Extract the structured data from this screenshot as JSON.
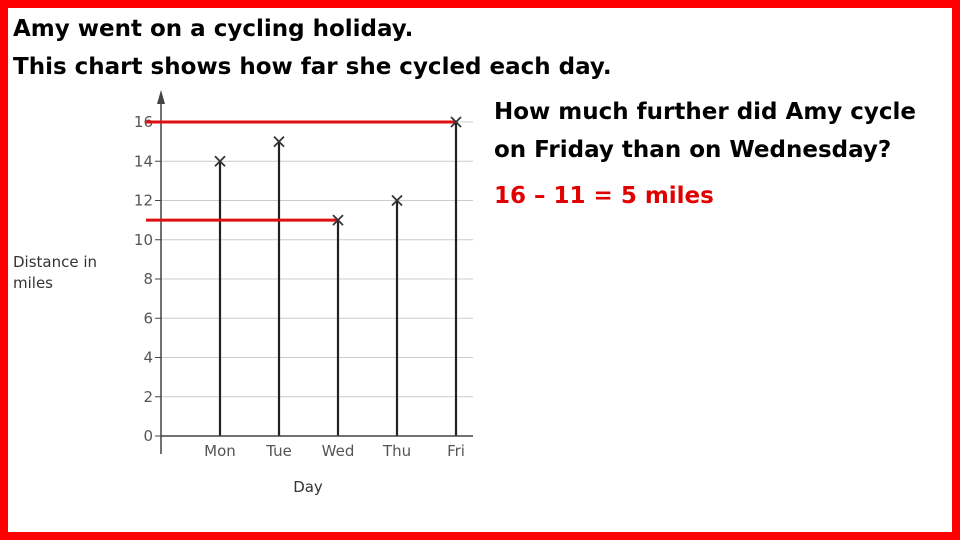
{
  "heading": {
    "line1": "Amy went on a cycling holiday.",
    "line2": "This chart shows how far she cycled each day."
  },
  "question": {
    "line1": "How much further did Amy cycle",
    "line2": "on Friday than on Wednesday?"
  },
  "answer": "16 – 11 = 5 miles",
  "colors": {
    "border": "#ff0000",
    "answer": "#e00000",
    "highlight": "#dd1111",
    "axis": "#444444",
    "grid": "#cccccc"
  },
  "chart_data": {
    "type": "line",
    "categories": [
      "Mon",
      "Tue",
      "Wed",
      "Thu",
      "Fri"
    ],
    "values": [
      14,
      15,
      11,
      12,
      16
    ],
    "marker": "x",
    "xlabel": "Day",
    "ylabel": "Distance in miles",
    "ylim": [
      0,
      16
    ],
    "yticks": [
      0,
      2,
      4,
      6,
      8,
      10,
      12,
      14,
      16
    ],
    "grid": true,
    "highlights": [
      16,
      11
    ]
  }
}
